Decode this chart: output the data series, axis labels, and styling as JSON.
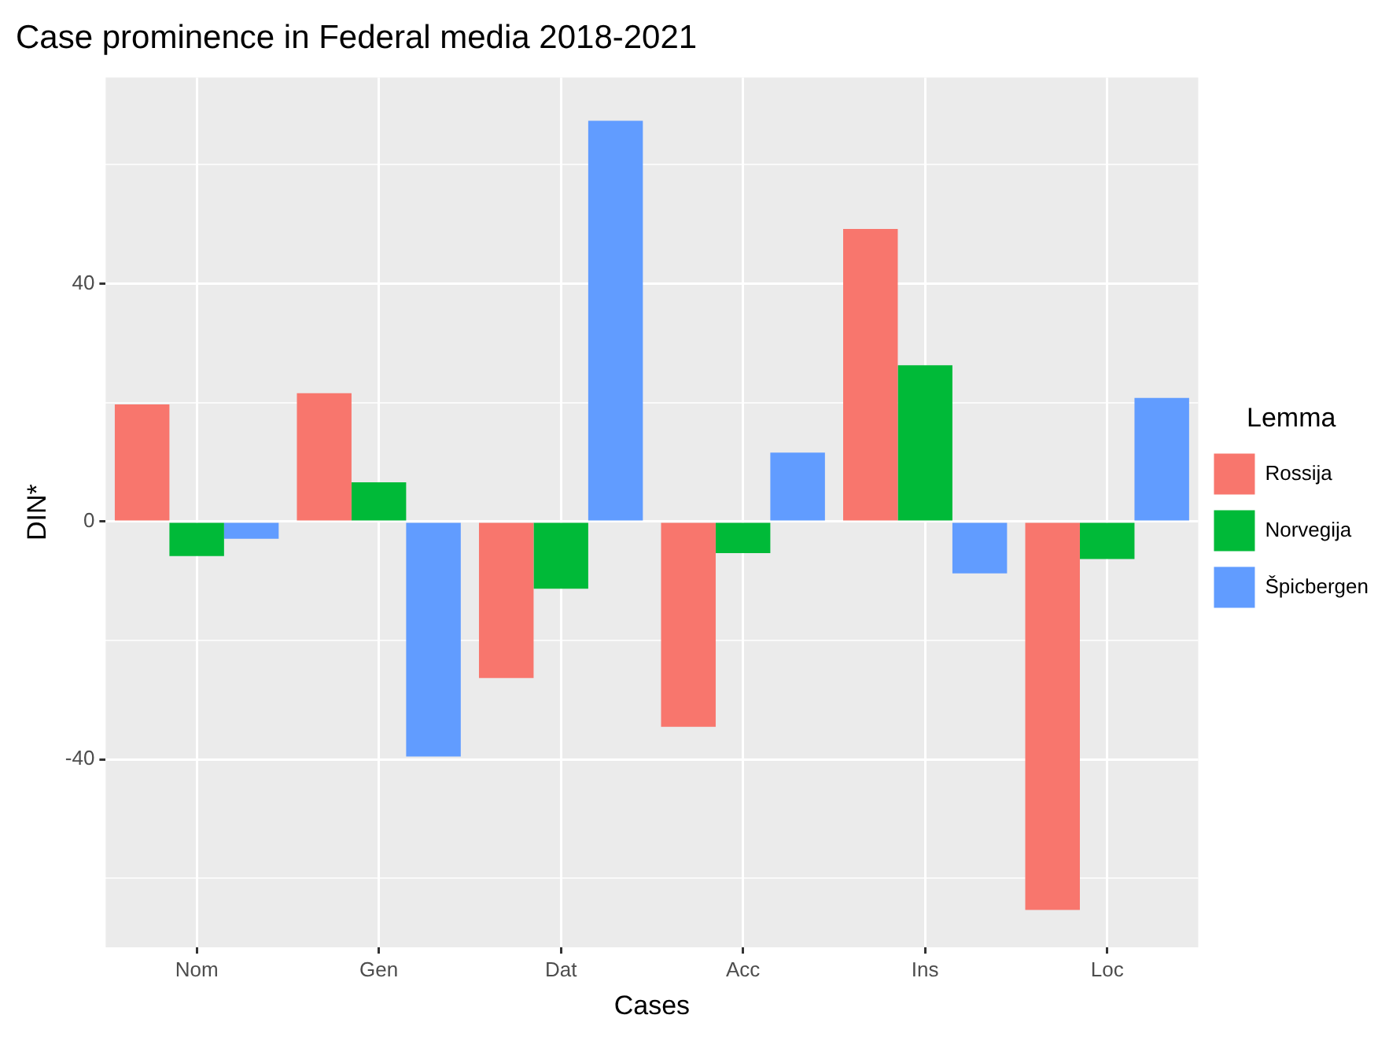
{
  "chart_data": {
    "type": "bar",
    "title": "Case prominence in Federal media 2018-2021",
    "xlabel": "Cases",
    "ylabel": "DIN*",
    "legend_title": "Lemma",
    "legend": "right",
    "grid": true,
    "categories": [
      "Nom",
      "Gen",
      "Dat",
      "Acc",
      "Ins",
      "Loc"
    ],
    "series": [
      {
        "name": "Rossija",
        "color": "#f8766d",
        "values": [
          19.7,
          21.6,
          -26.3,
          -34.5,
          49.2,
          -65.3
        ]
      },
      {
        "name": "Norvegija",
        "color": "#00ba38",
        "values": [
          -5.8,
          6.6,
          -11.3,
          -5.3,
          26.3,
          -6.3
        ]
      },
      {
        "name": "Špicbergen",
        "color": "#619cff",
        "values": [
          -2.9,
          -39.5,
          67.4,
          11.6,
          -8.7,
          20.8
        ]
      }
    ],
    "ylim": [
      -71.6,
      74.7
    ],
    "yticks": [
      {
        "value": -60,
        "label": null
      },
      -40,
      {
        "value": -20,
        "label": null
      },
      0,
      {
        "value": 20,
        "label": null
      },
      40,
      {
        "value": 60,
        "label": null
      }
    ]
  }
}
